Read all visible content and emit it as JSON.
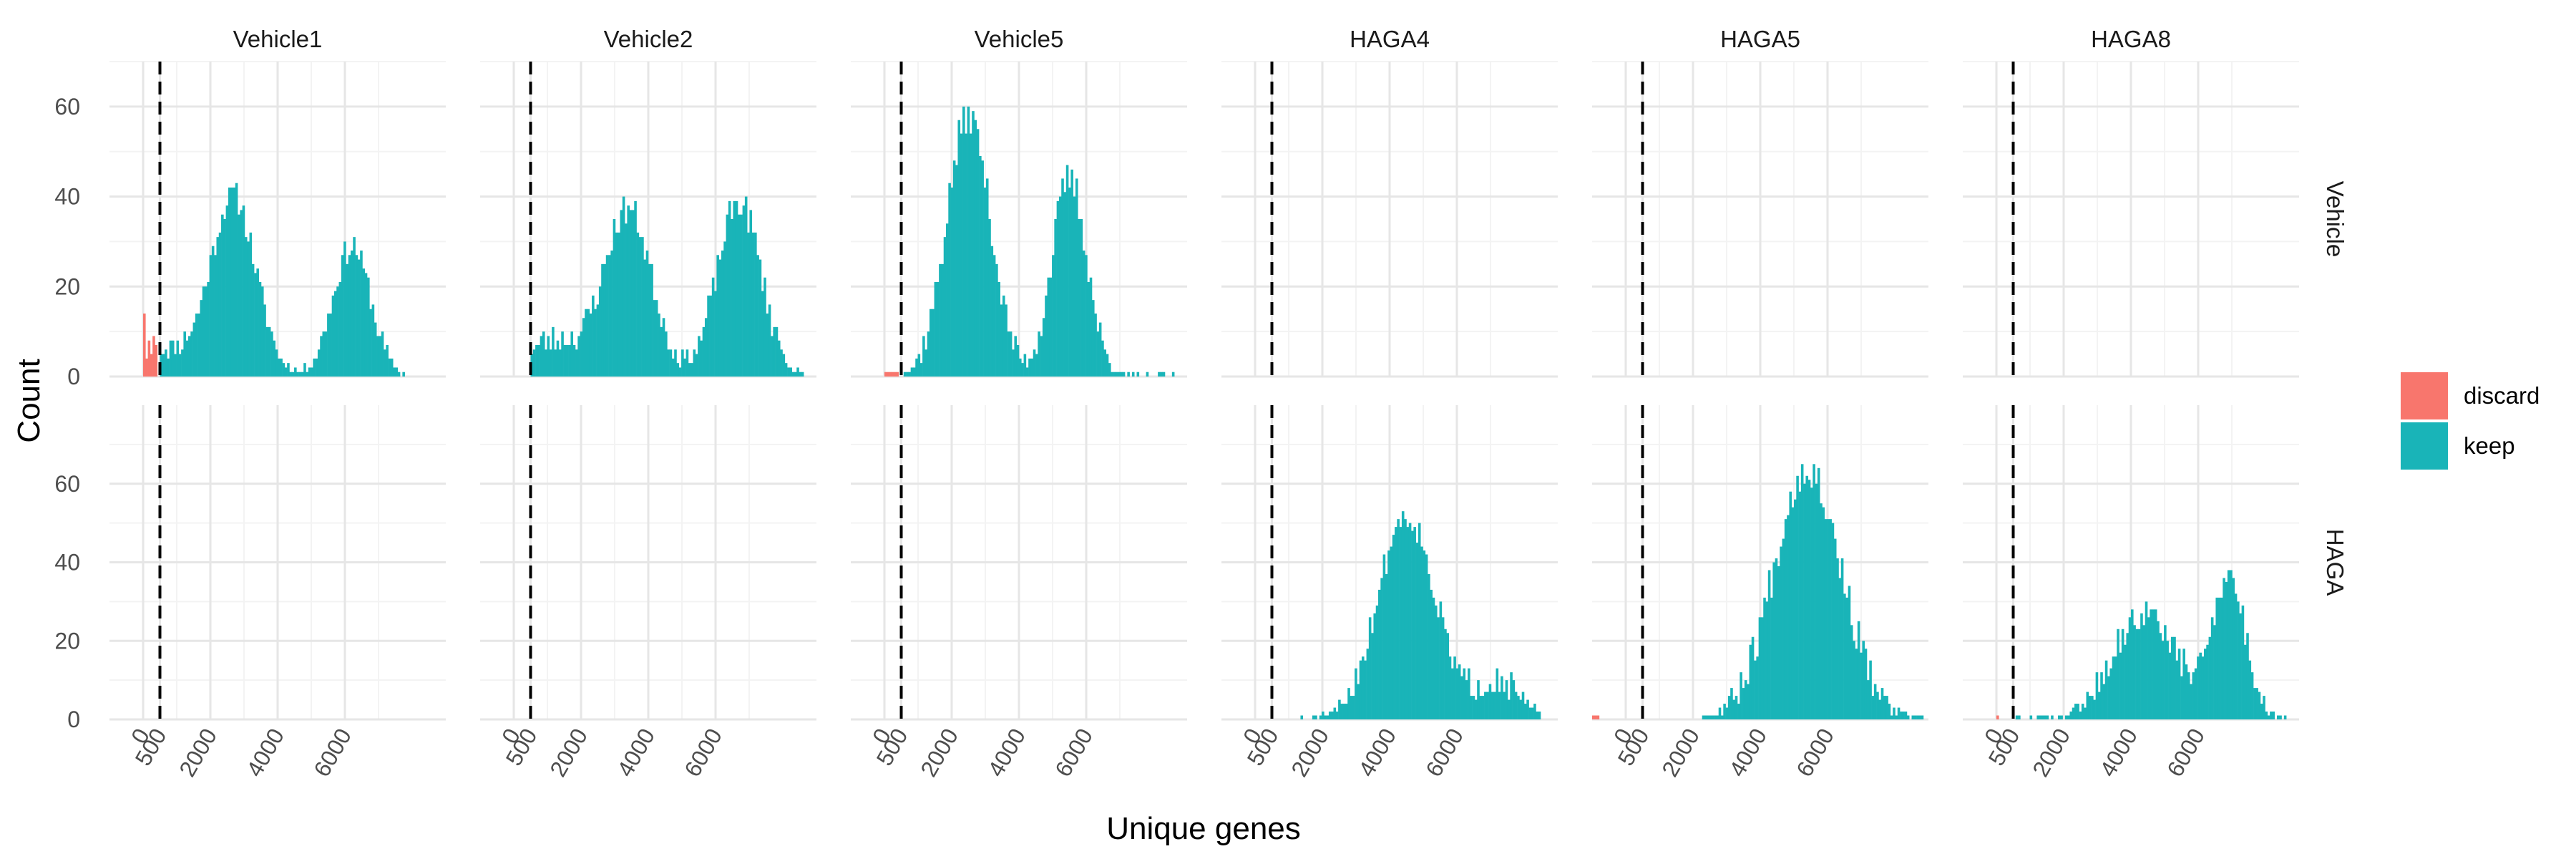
{
  "chart_data": {
    "type": "bar",
    "subtype": "faceted-histogram",
    "xlabel": "Unique genes",
    "ylabel": "Count",
    "threshold": 500,
    "threshold_style": "dashed vertical line",
    "xlim": [
      -1000,
      9000
    ],
    "x_ticks": [
      0,
      500,
      2000,
      4000,
      6000
    ],
    "x_tick_labels": [
      "0",
      "500",
      "2000",
      "4000",
      "6000"
    ],
    "bin_width": 70,
    "grid": true,
    "legend_position": "right",
    "legend": [
      {
        "label": "discard",
        "color": "#F8766D"
      },
      {
        "label": "keep",
        "color": "#19B4B8"
      }
    ],
    "columns": [
      "Vehicle1",
      "Vehicle2",
      "Vehicle5",
      "HAGA4",
      "HAGA5",
      "HAGA8"
    ],
    "rows": [
      {
        "label": "Vehicle",
        "ylim": [
          0,
          70
        ],
        "y_ticks": [
          0,
          20,
          40,
          60
        ],
        "y_tick_labels": [
          "0",
          "20",
          "40",
          "60"
        ]
      },
      {
        "label": "HAGA",
        "ylim": [
          0,
          80
        ],
        "y_ticks": [
          0,
          20,
          40,
          60
        ],
        "y_tick_labels": [
          "0",
          "20",
          "40",
          "60"
        ]
      }
    ],
    "panels": [
      {
        "column": "Vehicle1",
        "row": "Vehicle",
        "has_data": true,
        "discard": {
          "from": 0,
          "values": [
            14,
            4,
            8,
            5,
            9,
            7
          ]
        },
        "keep": {
          "peaks": [
            [
              600,
              1500,
              6
            ],
            [
              2700,
              650,
              38
            ],
            [
              6200,
              560,
              29
            ]
          ],
          "noise": 3,
          "start": 500,
          "end": 7800,
          "seed": 11
        }
      },
      {
        "column": "Vehicle2",
        "row": "Vehicle",
        "has_data": true,
        "discard": {
          "from": 0,
          "values": []
        },
        "keep": {
          "peaks": [
            [
              1200,
              900,
              8
            ],
            [
              3400,
              700,
              37
            ],
            [
              6700,
              650,
              39
            ]
          ],
          "noise": 3.5,
          "start": 500,
          "end": 8600,
          "seed": 23
        }
      },
      {
        "column": "Vehicle5",
        "row": "Vehicle",
        "has_data": true,
        "discard": {
          "from": 0,
          "values": [
            1,
            1,
            1,
            1,
            1,
            1
          ]
        },
        "keep": {
          "peaks": [
            [
              2500,
              650,
              58
            ],
            [
              5500,
              520,
              44
            ]
          ],
          "noise": 4,
          "start": 500,
          "end": 8600,
          "seed": 37
        }
      },
      {
        "column": "HAGA4",
        "row": "Vehicle",
        "has_data": false
      },
      {
        "column": "HAGA5",
        "row": "Vehicle",
        "has_data": false
      },
      {
        "column": "HAGA8",
        "row": "Vehicle",
        "has_data": false
      },
      {
        "column": "Vehicle1",
        "row": "HAGA",
        "has_data": false
      },
      {
        "column": "Vehicle2",
        "row": "HAGA",
        "has_data": false
      },
      {
        "column": "Vehicle5",
        "row": "HAGA",
        "has_data": false
      },
      {
        "column": "HAGA4",
        "row": "HAGA",
        "has_data": true,
        "discard": {
          "from": 0,
          "values": []
        },
        "keep": {
          "peaks": [
            [
              4500,
              850,
              52
            ],
            [
              7200,
              650,
              10
            ]
          ],
          "noise": 4,
          "start": 1000,
          "end": 8500,
          "seed": 51
        }
      },
      {
        "column": "HAGA5",
        "row": "HAGA",
        "has_data": true,
        "discard": {
          "from": -1000,
          "values": [
            1,
            1,
            1
          ]
        },
        "keep": {
          "peaks": [
            [
              5400,
              1000,
              64
            ]
          ],
          "noise": 5,
          "start": 2200,
          "end": 8800,
          "seed": 67
        }
      },
      {
        "column": "HAGA8",
        "row": "HAGA",
        "has_data": true,
        "discard": {
          "from": 0,
          "values": [
            1,
            0
          ]
        },
        "keep": {
          "peaks": [
            [
              4400,
              950,
              27
            ],
            [
              6900,
              500,
              36
            ]
          ],
          "noise": 4,
          "start": 500,
          "end": 8600,
          "seed": 79
        }
      }
    ]
  }
}
